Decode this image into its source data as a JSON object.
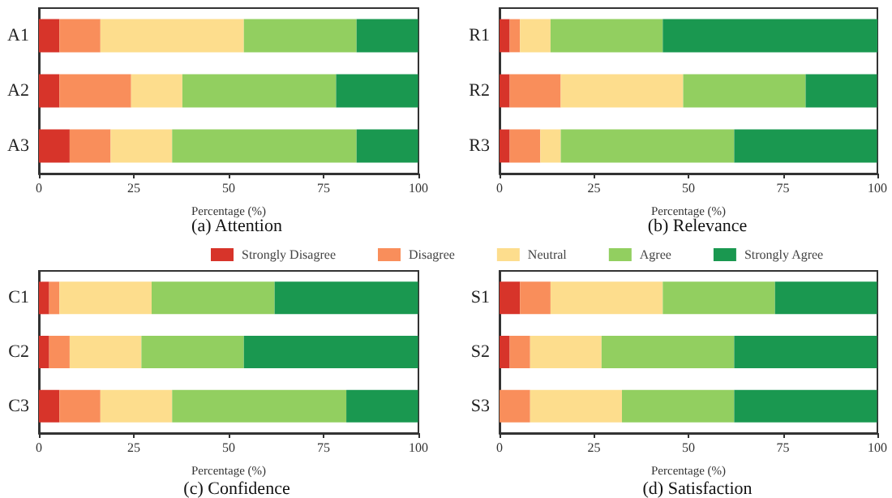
{
  "chart_data": [
    {
      "type": "bar",
      "orientation": "horizontal",
      "stacked": true,
      "title": "(a) Attention",
      "xlabel": "Percentage (%)",
      "categories": [
        "A1",
        "A2",
        "A3"
      ],
      "xlim": [
        0,
        100
      ],
      "xticks": [
        0,
        25,
        50,
        75,
        100
      ],
      "series": [
        {
          "color": "#d7342a",
          "values": [
            5.4,
            5.4,
            8.1
          ]
        },
        {
          "color": "#f98e5b",
          "values": [
            10.8,
            18.9,
            10.8
          ]
        },
        {
          "color": "#fddd8d",
          "values": [
            37.8,
            13.5,
            16.2
          ]
        },
        {
          "color": "#92cf60",
          "values": [
            29.7,
            40.5,
            48.6
          ]
        },
        {
          "color": "#1a9850",
          "values": [
            16.2,
            21.6,
            16.2
          ]
        }
      ]
    },
    {
      "type": "bar",
      "orientation": "horizontal",
      "stacked": true,
      "title": "(b) Relevance",
      "xlabel": "Percentage (%)",
      "categories": [
        "R1",
        "R2",
        "R3"
      ],
      "xlim": [
        0,
        100
      ],
      "xticks": [
        0,
        25,
        50,
        75,
        100
      ],
      "series": [
        {
          "color": "#d7342a",
          "values": [
            2.7,
            2.7,
            2.7
          ]
        },
        {
          "color": "#f98e5b",
          "values": [
            2.7,
            13.5,
            8.1
          ]
        },
        {
          "color": "#fddd8d",
          "values": [
            8.1,
            32.4,
            5.4
          ]
        },
        {
          "color": "#92cf60",
          "values": [
            29.7,
            32.4,
            45.9
          ]
        },
        {
          "color": "#1a9850",
          "values": [
            56.8,
            18.9,
            37.8
          ]
        }
      ]
    },
    {
      "type": "bar",
      "orientation": "horizontal",
      "stacked": true,
      "title": "(c) Confidence",
      "xlabel": "Percentage (%)",
      "categories": [
        "C1",
        "C2",
        "C3"
      ],
      "xlim": [
        0,
        100
      ],
      "xticks": [
        0,
        25,
        50,
        75,
        100
      ],
      "legend": "top",
      "series": [
        {
          "name": "Strongly Disagree",
          "color": "#d7342a",
          "values": [
            2.7,
            2.7,
            5.4
          ]
        },
        {
          "name": "Disagree",
          "color": "#f98e5b",
          "values": [
            2.7,
            5.4,
            10.8
          ]
        },
        {
          "name": "Neutral",
          "color": "#fddd8d",
          "values": [
            24.3,
            18.9,
            18.9
          ]
        },
        {
          "name": "Agree",
          "color": "#92cf60",
          "values": [
            32.4,
            27.0,
            45.9
          ]
        },
        {
          "name": "Strongly Agree",
          "color": "#1a9850",
          "values": [
            37.8,
            45.9,
            18.9
          ]
        }
      ]
    },
    {
      "type": "bar",
      "orientation": "horizontal",
      "stacked": true,
      "title": "(d) Satisfaction",
      "xlabel": "Percentage (%)",
      "categories": [
        "S1",
        "S2",
        "S3"
      ],
      "xlim": [
        0,
        100
      ],
      "xticks": [
        0,
        25,
        50,
        75,
        100
      ],
      "series": [
        {
          "color": "#d7342a",
          "values": [
            5.4,
            2.7,
            0
          ]
        },
        {
          "color": "#f98e5b",
          "values": [
            8.1,
            5.4,
            8.1
          ]
        },
        {
          "color": "#fddd8d",
          "values": [
            29.7,
            18.9,
            24.3
          ]
        },
        {
          "color": "#92cf60",
          "values": [
            29.7,
            35.1,
            29.7
          ]
        },
        {
          "color": "#1a9850",
          "values": [
            27.0,
            37.8,
            37.8
          ]
        }
      ]
    }
  ]
}
